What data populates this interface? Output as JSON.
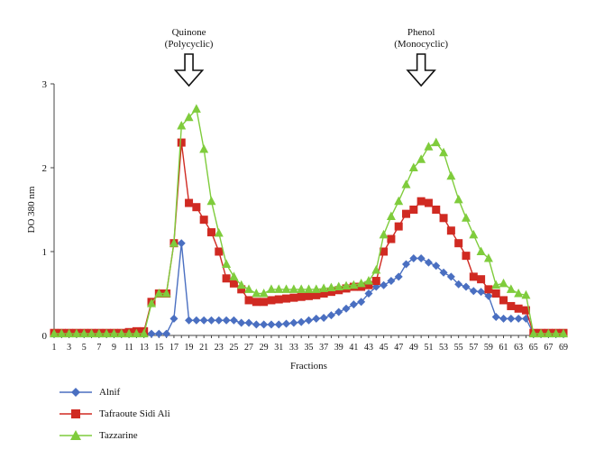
{
  "chart_data": {
    "type": "line",
    "xlabel": "Fractions",
    "ylabel": "DO 380 nm",
    "xlim": [
      1,
      69
    ],
    "ylim": [
      0,
      3
    ],
    "yticks": [
      0,
      1,
      2,
      3
    ],
    "xticks": [
      1,
      3,
      5,
      7,
      9,
      11,
      13,
      15,
      17,
      19,
      21,
      23,
      25,
      27,
      29,
      31,
      33,
      35,
      37,
      39,
      41,
      43,
      45,
      47,
      49,
      51,
      53,
      55,
      57,
      59,
      61,
      63,
      65,
      67,
      69
    ],
    "annotations": [
      {
        "lines": [
          "Quinone",
          "(Polycyclic)"
        ],
        "x": 19
      },
      {
        "lines": [
          "Phenol",
          "(Monocyclic)"
        ],
        "x": 50
      }
    ],
    "legend_position": "bottom-left",
    "series": [
      {
        "name": "Alnif",
        "color": "#4a6fc1",
        "marker": "diamond",
        "points": [
          [
            1,
            0.02
          ],
          [
            2,
            0.03
          ],
          [
            3,
            0.03
          ],
          [
            4,
            0.03
          ],
          [
            5,
            0.03
          ],
          [
            6,
            0.03
          ],
          [
            7,
            0.03
          ],
          [
            8,
            0.03
          ],
          [
            9,
            0.03
          ],
          [
            10,
            0.03
          ],
          [
            11,
            0.03
          ],
          [
            12,
            0.03
          ],
          [
            13,
            0.03
          ],
          [
            14,
            0.02
          ],
          [
            15,
            0.02
          ],
          [
            16,
            0.02
          ],
          [
            17,
            0.2
          ],
          [
            18,
            1.1
          ],
          [
            19,
            0.18
          ],
          [
            20,
            0.18
          ],
          [
            21,
            0.18
          ],
          [
            22,
            0.18
          ],
          [
            23,
            0.18
          ],
          [
            24,
            0.18
          ],
          [
            25,
            0.18
          ],
          [
            26,
            0.15
          ],
          [
            27,
            0.15
          ],
          [
            28,
            0.13
          ],
          [
            29,
            0.13
          ],
          [
            30,
            0.13
          ],
          [
            31,
            0.13
          ],
          [
            32,
            0.14
          ],
          [
            33,
            0.15
          ],
          [
            34,
            0.16
          ],
          [
            35,
            0.18
          ],
          [
            36,
            0.2
          ],
          [
            37,
            0.21
          ],
          [
            38,
            0.24
          ],
          [
            39,
            0.28
          ],
          [
            40,
            0.32
          ],
          [
            41,
            0.37
          ],
          [
            42,
            0.4
          ],
          [
            43,
            0.5
          ],
          [
            44,
            0.58
          ],
          [
            45,
            0.6
          ],
          [
            46,
            0.65
          ],
          [
            47,
            0.7
          ],
          [
            48,
            0.85
          ],
          [
            49,
            0.92
          ],
          [
            50,
            0.92
          ],
          [
            51,
            0.87
          ],
          [
            52,
            0.83
          ],
          [
            53,
            0.75
          ],
          [
            54,
            0.7
          ],
          [
            55,
            0.61
          ],
          [
            56,
            0.58
          ],
          [
            57,
            0.53
          ],
          [
            58,
            0.52
          ],
          [
            59,
            0.47
          ],
          [
            60,
            0.22
          ],
          [
            61,
            0.2
          ],
          [
            62,
            0.2
          ],
          [
            63,
            0.2
          ],
          [
            64,
            0.2
          ],
          [
            65,
            0.02
          ],
          [
            66,
            0.02
          ],
          [
            67,
            0.02
          ],
          [
            68,
            0.02
          ],
          [
            69,
            0.02
          ]
        ]
      },
      {
        "name": "Tafraoute Sidi Ali",
        "color": "#d02a22",
        "marker": "square",
        "points": [
          [
            1,
            0.03
          ],
          [
            2,
            0.03
          ],
          [
            3,
            0.03
          ],
          [
            4,
            0.03
          ],
          [
            5,
            0.03
          ],
          [
            6,
            0.03
          ],
          [
            7,
            0.03
          ],
          [
            8,
            0.03
          ],
          [
            9,
            0.03
          ],
          [
            10,
            0.03
          ],
          [
            11,
            0.04
          ],
          [
            12,
            0.05
          ],
          [
            13,
            0.05
          ],
          [
            14,
            0.4
          ],
          [
            15,
            0.5
          ],
          [
            16,
            0.5
          ],
          [
            17,
            1.1
          ],
          [
            18,
            2.3
          ],
          [
            19,
            1.58
          ],
          [
            20,
            1.53
          ],
          [
            21,
            1.38
          ],
          [
            22,
            1.23
          ],
          [
            23,
            1.0
          ],
          [
            24,
            0.68
          ],
          [
            25,
            0.62
          ],
          [
            26,
            0.55
          ],
          [
            27,
            0.42
          ],
          [
            28,
            0.4
          ],
          [
            29,
            0.4
          ],
          [
            30,
            0.42
          ],
          [
            31,
            0.43
          ],
          [
            32,
            0.44
          ],
          [
            33,
            0.45
          ],
          [
            34,
            0.46
          ],
          [
            35,
            0.47
          ],
          [
            36,
            0.48
          ],
          [
            37,
            0.5
          ],
          [
            38,
            0.52
          ],
          [
            39,
            0.54
          ],
          [
            40,
            0.56
          ],
          [
            41,
            0.58
          ],
          [
            42,
            0.58
          ],
          [
            43,
            0.6
          ],
          [
            44,
            0.65
          ],
          [
            45,
            1.0
          ],
          [
            46,
            1.15
          ],
          [
            47,
            1.3
          ],
          [
            48,
            1.45
          ],
          [
            49,
            1.5
          ],
          [
            50,
            1.6
          ],
          [
            51,
            1.58
          ],
          [
            52,
            1.5
          ],
          [
            53,
            1.4
          ],
          [
            54,
            1.25
          ],
          [
            55,
            1.1
          ],
          [
            56,
            0.95
          ],
          [
            57,
            0.7
          ],
          [
            58,
            0.67
          ],
          [
            59,
            0.55
          ],
          [
            60,
            0.5
          ],
          [
            61,
            0.42
          ],
          [
            62,
            0.35
          ],
          [
            63,
            0.32
          ],
          [
            64,
            0.3
          ],
          [
            65,
            0.03
          ],
          [
            66,
            0.03
          ],
          [
            67,
            0.03
          ],
          [
            68,
            0.03
          ],
          [
            69,
            0.03
          ]
        ]
      },
      {
        "name": "Tazzarine",
        "color": "#7fcc3c",
        "marker": "triangle",
        "points": [
          [
            1,
            0.02
          ],
          [
            2,
            0.02
          ],
          [
            3,
            0.02
          ],
          [
            4,
            0.02
          ],
          [
            5,
            0.02
          ],
          [
            6,
            0.02
          ],
          [
            7,
            0.02
          ],
          [
            8,
            0.02
          ],
          [
            9,
            0.02
          ],
          [
            10,
            0.02
          ],
          [
            11,
            0.02
          ],
          [
            12,
            0.02
          ],
          [
            13,
            0.02
          ],
          [
            14,
            0.38
          ],
          [
            15,
            0.5
          ],
          [
            16,
            0.5
          ],
          [
            17,
            1.1
          ],
          [
            18,
            2.5
          ],
          [
            19,
            2.6
          ],
          [
            20,
            2.7
          ],
          [
            21,
            2.22
          ],
          [
            22,
            1.6
          ],
          [
            23,
            1.22
          ],
          [
            24,
            0.85
          ],
          [
            25,
            0.7
          ],
          [
            26,
            0.6
          ],
          [
            27,
            0.55
          ],
          [
            28,
            0.5
          ],
          [
            29,
            0.5
          ],
          [
            30,
            0.55
          ],
          [
            31,
            0.55
          ],
          [
            32,
            0.55
          ],
          [
            33,
            0.55
          ],
          [
            34,
            0.55
          ],
          [
            35,
            0.55
          ],
          [
            36,
            0.55
          ],
          [
            37,
            0.56
          ],
          [
            38,
            0.57
          ],
          [
            39,
            0.58
          ],
          [
            40,
            0.59
          ],
          [
            41,
            0.6
          ],
          [
            42,
            0.62
          ],
          [
            43,
            0.65
          ],
          [
            44,
            0.78
          ],
          [
            45,
            1.2
          ],
          [
            46,
            1.42
          ],
          [
            47,
            1.6
          ],
          [
            48,
            1.8
          ],
          [
            49,
            2.0
          ],
          [
            50,
            2.1
          ],
          [
            51,
            2.25
          ],
          [
            52,
            2.3
          ],
          [
            53,
            2.18
          ],
          [
            54,
            1.9
          ],
          [
            55,
            1.62
          ],
          [
            56,
            1.4
          ],
          [
            57,
            1.2
          ],
          [
            58,
            1.0
          ],
          [
            59,
            0.92
          ],
          [
            60,
            0.6
          ],
          [
            61,
            0.62
          ],
          [
            62,
            0.55
          ],
          [
            63,
            0.5
          ],
          [
            64,
            0.48
          ],
          [
            65,
            0.02
          ],
          [
            66,
            0.02
          ],
          [
            67,
            0.02
          ],
          [
            68,
            0.02
          ],
          [
            69,
            0.02
          ]
        ]
      }
    ]
  }
}
